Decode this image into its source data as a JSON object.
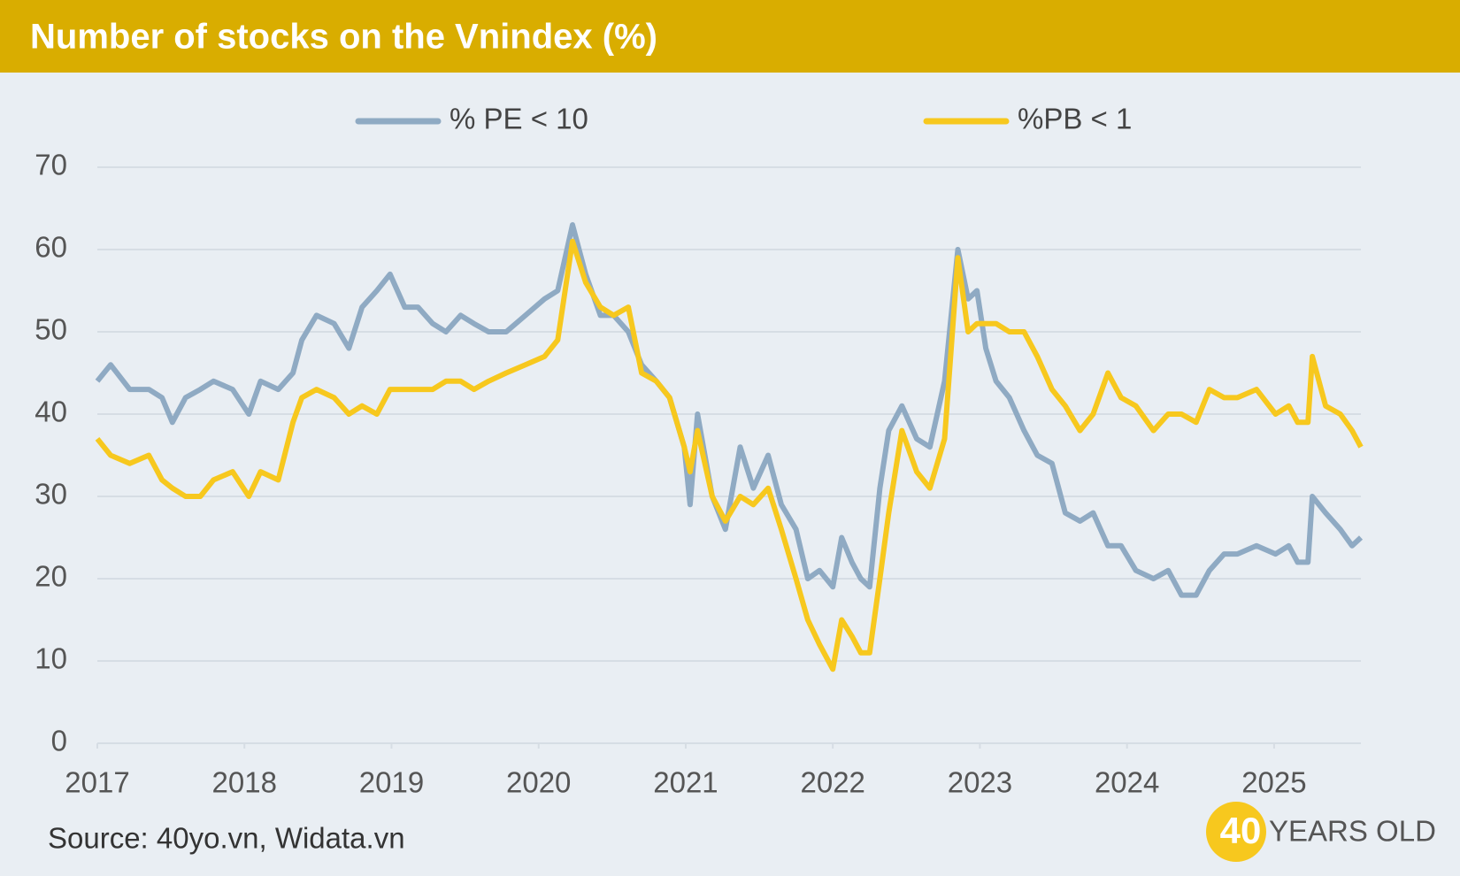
{
  "chart_data": {
    "type": "line",
    "title": "Number of stocks on the Vnindex (%)",
    "source": "Source: 40yo.vn, Widata.vn",
    "logo": {
      "number": "40",
      "text": "YEARS OLD"
    },
    "x": [
      2017.0,
      2017.09,
      2017.22,
      2017.35,
      2017.44,
      2017.51,
      2017.6,
      2017.7,
      2017.79,
      2017.92,
      2018.03,
      2018.11,
      2018.23,
      2018.33,
      2018.39,
      2018.49,
      2018.61,
      2018.71,
      2018.8,
      2018.9,
      2018.99,
      2019.09,
      2019.18,
      2019.28,
      2019.37,
      2019.47,
      2019.56,
      2019.66,
      2019.78,
      2019.91,
      2020.04,
      2020.13,
      2020.23,
      2020.32,
      2020.42,
      2020.51,
      2020.61,
      2020.7,
      2020.8,
      2020.89,
      2020.99,
      2021.03,
      2021.08,
      2021.18,
      2021.27,
      2021.37,
      2021.46,
      2021.56,
      2021.65,
      2021.75,
      2021.83,
      2021.91,
      2022.0,
      2022.06,
      2022.13,
      2022.19,
      2022.25,
      2022.32,
      2022.38,
      2022.47,
      2022.57,
      2022.66,
      2022.76,
      2022.85,
      2022.92,
      2022.98,
      2023.04,
      2023.11,
      2023.2,
      2023.3,
      2023.39,
      2023.49,
      2023.58,
      2023.68,
      2023.77,
      2023.87,
      2023.96,
      2024.06,
      2024.18,
      2024.28,
      2024.37,
      2024.47,
      2024.56,
      2024.66,
      2024.75,
      2024.88,
      2025.01,
      2025.1,
      2025.16,
      2025.23,
      2025.26,
      2025.35,
      2025.45,
      2025.53,
      2025.59
    ],
    "series": [
      {
        "name": "% PE < 10",
        "color": "#8faac3",
        "values": [
          44,
          46,
          43,
          43,
          42,
          39,
          42,
          43,
          44,
          43,
          40,
          44,
          43,
          45,
          49,
          52,
          51,
          48,
          53,
          55,
          57,
          53,
          53,
          51,
          50,
          52,
          51,
          50,
          50,
          52,
          54,
          55,
          63,
          57,
          52,
          52,
          50,
          46,
          44,
          42,
          36,
          29,
          40,
          30,
          26,
          36,
          31,
          35,
          29,
          26,
          20,
          21,
          19,
          25,
          22,
          20,
          19,
          31,
          38,
          41,
          37,
          36,
          44,
          60,
          54,
          55,
          48,
          44,
          42,
          38,
          35,
          34,
          28,
          27,
          28,
          24,
          24,
          21,
          20,
          21,
          18,
          18,
          21,
          23,
          23,
          24,
          23,
          24,
          22,
          22,
          30,
          28,
          26,
          24,
          25
        ]
      },
      {
        "name": "%PB < 1",
        "color": "#f7c81e",
        "values": [
          37,
          35,
          34,
          35,
          32,
          31,
          30,
          30,
          32,
          33,
          30,
          33,
          32,
          39,
          42,
          43,
          42,
          40,
          41,
          40,
          43,
          43,
          43,
          43,
          44,
          44,
          43,
          44,
          45,
          46,
          47,
          49,
          61,
          56,
          53,
          52,
          53,
          45,
          44,
          42,
          36,
          33,
          38,
          30,
          27,
          30,
          29,
          31,
          26,
          20,
          15,
          12,
          9,
          15,
          13,
          11,
          11,
          20,
          28,
          38,
          33,
          31,
          37,
          59,
          50,
          51,
          51,
          51,
          50,
          50,
          47,
          43,
          41,
          38,
          40,
          45,
          42,
          41,
          38,
          40,
          40,
          39,
          43,
          42,
          42,
          43,
          40,
          41,
          39,
          39,
          47,
          41,
          40,
          38,
          36
        ]
      }
    ],
    "xlim": [
      2017,
      2025.59
    ],
    "xticks": [
      2017,
      2018,
      2019,
      2020,
      2021,
      2022,
      2023,
      2024,
      2025
    ],
    "ylim": [
      0,
      70
    ],
    "yticks": [
      0,
      10,
      20,
      30,
      40,
      50,
      60,
      70
    ],
    "grid": true,
    "legend": "top"
  }
}
